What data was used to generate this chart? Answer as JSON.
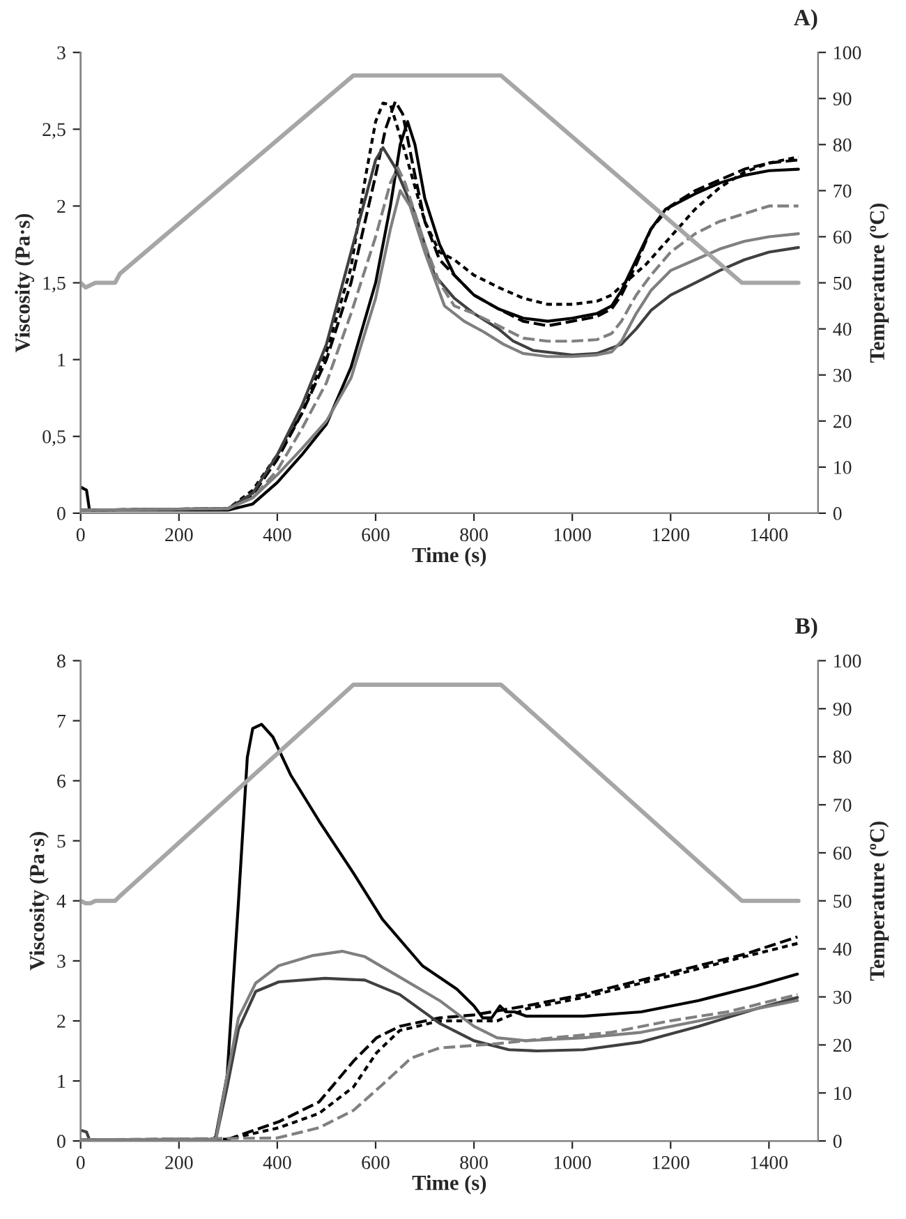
{
  "chart_data": [
    {
      "type": "line",
      "title": "A)",
      "xlabel": "Time (s)",
      "ylabel": "Viscosity (Pa·s)",
      "y2label": "Temperature (ºC)",
      "xlim": [
        0,
        1500
      ],
      "xticks": [
        0,
        200,
        400,
        600,
        800,
        1000,
        1200,
        1400
      ],
      "ylim": [
        0,
        3
      ],
      "yticks": [
        0,
        {
          "value": 0.5,
          "label": "0,5"
        },
        1,
        {
          "value": 1.5,
          "label": "1,5"
        },
        2,
        {
          "value": 2.5,
          "label": "2,5"
        },
        3
      ],
      "y2lim": [
        0,
        100
      ],
      "y2ticks": [
        0,
        10,
        20,
        30,
        40,
        50,
        60,
        70,
        80,
        90,
        100
      ],
      "grid": false,
      "legend": false,
      "marker": "none",
      "series": [
        {
          "color": "#000000",
          "line_style": "solid",
          "x": [
            0,
            12,
            18,
            300,
            350,
            400,
            450,
            500,
            550,
            600,
            630,
            650,
            665,
            680,
            700,
            730,
            760,
            800,
            850,
            900,
            950,
            1000,
            1050,
            1080,
            1100,
            1130,
            1160,
            1190,
            1250,
            1300,
            1350,
            1400,
            1460
          ],
          "values": [
            0.17,
            0.15,
            0.02,
            0.02,
            0.06,
            0.2,
            0.38,
            0.58,
            0.95,
            1.5,
            2.0,
            2.4,
            2.55,
            2.4,
            2.05,
            1.75,
            1.55,
            1.42,
            1.33,
            1.27,
            1.25,
            1.27,
            1.3,
            1.35,
            1.45,
            1.65,
            1.85,
            1.98,
            2.08,
            2.15,
            2.2,
            2.23,
            2.24
          ]
        },
        {
          "color": "#000000",
          "line_style": "dashed",
          "x": [
            0,
            300,
            350,
            400,
            450,
            500,
            550,
            600,
            620,
            640,
            655,
            680,
            700,
            730,
            760,
            800,
            850,
            900,
            950,
            1000,
            1050,
            1080,
            1100,
            1130,
            1160,
            1200,
            1250,
            1300,
            1350,
            1400,
            1460
          ],
          "values": [
            0.02,
            0.03,
            0.12,
            0.35,
            0.65,
            1.0,
            1.5,
            2.2,
            2.5,
            2.68,
            2.6,
            2.2,
            1.9,
            1.65,
            1.55,
            1.42,
            1.33,
            1.25,
            1.22,
            1.25,
            1.28,
            1.33,
            1.42,
            1.62,
            1.85,
            2.0,
            2.1,
            2.17,
            2.24,
            2.28,
            2.3
          ]
        },
        {
          "color": "#000000",
          "line_style": "dotted",
          "x": [
            0,
            300,
            350,
            400,
            450,
            500,
            550,
            580,
            600,
            615,
            630,
            660,
            700,
            730,
            760,
            800,
            850,
            900,
            950,
            1000,
            1050,
            1080,
            1100,
            1150,
            1200,
            1250,
            1300,
            1350,
            1400,
            1460
          ],
          "values": [
            0.02,
            0.03,
            0.15,
            0.38,
            0.65,
            1.05,
            1.6,
            2.2,
            2.55,
            2.67,
            2.66,
            2.35,
            1.9,
            1.7,
            1.65,
            1.55,
            1.47,
            1.4,
            1.36,
            1.36,
            1.38,
            1.42,
            1.48,
            1.62,
            1.8,
            1.98,
            2.12,
            2.22,
            2.28,
            2.32
          ]
        },
        {
          "color": "#404040",
          "line_style": "solid",
          "x": [
            0,
            300,
            350,
            400,
            450,
            500,
            550,
            600,
            615,
            640,
            680,
            720,
            760,
            800,
            850,
            880,
            920,
            1000,
            1050,
            1100,
            1130,
            1160,
            1200,
            1250,
            1300,
            1350,
            1400,
            1460
          ],
          "values": [
            0.02,
            0.03,
            0.13,
            0.38,
            0.7,
            1.1,
            1.7,
            2.3,
            2.38,
            2.25,
            1.95,
            1.55,
            1.4,
            1.3,
            1.2,
            1.12,
            1.06,
            1.03,
            1.04,
            1.1,
            1.2,
            1.32,
            1.42,
            1.5,
            1.58,
            1.65,
            1.7,
            1.73
          ]
        },
        {
          "color": "#808080",
          "line_style": "dashed",
          "x": [
            0,
            300,
            350,
            400,
            450,
            500,
            550,
            600,
            630,
            645,
            660,
            700,
            730,
            760,
            800,
            850,
            900,
            950,
            1000,
            1050,
            1080,
            1100,
            1130,
            1160,
            1200,
            1250,
            1300,
            1350,
            1400,
            1460
          ],
          "values": [
            0.02,
            0.03,
            0.1,
            0.28,
            0.55,
            0.85,
            1.3,
            1.8,
            2.15,
            2.25,
            2.15,
            1.75,
            1.5,
            1.35,
            1.3,
            1.22,
            1.14,
            1.12,
            1.12,
            1.13,
            1.17,
            1.25,
            1.42,
            1.55,
            1.7,
            1.82,
            1.9,
            1.95,
            2.0,
            2.0
          ]
        },
        {
          "color": "#7f7f7f",
          "line_style": "solid",
          "x": [
            0,
            300,
            350,
            400,
            450,
            500,
            550,
            600,
            630,
            650,
            670,
            700,
            740,
            780,
            820,
            860,
            900,
            950,
            1000,
            1050,
            1080,
            1100,
            1130,
            1160,
            1200,
            1250,
            1300,
            1350,
            1400,
            1460
          ],
          "values": [
            0.02,
            0.03,
            0.1,
            0.25,
            0.42,
            0.6,
            0.88,
            1.4,
            1.85,
            2.1,
            2.0,
            1.7,
            1.35,
            1.25,
            1.18,
            1.1,
            1.04,
            1.02,
            1.02,
            1.03,
            1.05,
            1.12,
            1.3,
            1.45,
            1.58,
            1.65,
            1.72,
            1.77,
            1.8,
            1.82
          ]
        },
        {
          "color": "#a6a6a6",
          "line_style": "solid",
          "axis": "y2",
          "x": [
            0,
            10,
            30,
            70,
            80,
            555,
            855,
            1345,
            1460
          ],
          "values": [
            50,
            49,
            50,
            50,
            52,
            95,
            95,
            50,
            50
          ]
        }
      ]
    },
    {
      "type": "line",
      "title": "B)",
      "xlabel": "Time (s)",
      "ylabel": "Viscosity (Pa·s)",
      "y2label": "Temperature (ºC)",
      "xlim": [
        0,
        1500
      ],
      "xticks": [
        0,
        200,
        400,
        600,
        800,
        1000,
        1200,
        1400
      ],
      "ylim": [
        0,
        8
      ],
      "yticks": [
        0,
        1,
        2,
        3,
        4,
        5,
        6,
        7,
        8
      ],
      "y2lim": [
        0,
        100
      ],
      "y2ticks": [
        0,
        10,
        20,
        30,
        40,
        50,
        60,
        70,
        80,
        90,
        100
      ],
      "grid": false,
      "legend": false,
      "marker": "none",
      "series": [
        {
          "color": "#000000",
          "line_style": "solid",
          "x": [
            0,
            270,
            275,
            298,
            321,
            339,
            350,
            368,
            391,
            427,
            485,
            555,
            614,
            695,
            765,
            800,
            818,
            836,
            853,
            865,
            883,
            906,
            1023,
            1140,
            1257,
            1373,
            1458
          ],
          "values": [
            0.02,
            0.02,
            0.08,
            1.09,
            3.98,
            6.39,
            6.87,
            6.94,
            6.73,
            6.1,
            5.33,
            4.46,
            3.69,
            2.92,
            2.53,
            2.25,
            2.05,
            2.05,
            2.25,
            2.15,
            2.15,
            2.08,
            2.08,
            2.15,
            2.34,
            2.58,
            2.78
          ]
        },
        {
          "color": "#000000",
          "line_style": "dashed",
          "x": [
            0,
            300,
            403,
            485,
            555,
            602,
            649,
            730,
            800,
            906,
            1023,
            1140,
            1257,
            1350,
            1458
          ],
          "values": [
            0.02,
            0.03,
            0.32,
            0.65,
            1.33,
            1.72,
            1.91,
            2.05,
            2.1,
            2.25,
            2.44,
            2.68,
            2.92,
            3.11,
            3.4
          ]
        },
        {
          "color": "#000000",
          "line_style": "dotted",
          "x": [
            0,
            300,
            403,
            485,
            555,
            602,
            649,
            730,
            847,
            906,
            1023,
            1140,
            1257,
            1350,
            1458
          ],
          "values": [
            0.02,
            0.03,
            0.22,
            0.46,
            0.9,
            1.47,
            1.84,
            2.0,
            2.0,
            2.2,
            2.39,
            2.63,
            2.87,
            3.07,
            3.29
          ]
        },
        {
          "color": "#404040",
          "line_style": "solid",
          "x": [
            0,
            12,
            18,
            275,
            298,
            321,
            356,
            403,
            497,
            578,
            649,
            730,
            800,
            871,
            929,
            1023,
            1140,
            1257,
            1373,
            1458
          ],
          "values": [
            0.18,
            0.15,
            0.02,
            0.03,
            0.9,
            1.86,
            2.49,
            2.65,
            2.71,
            2.68,
            2.44,
            1.96,
            1.67,
            1.52,
            1.5,
            1.52,
            1.65,
            1.91,
            2.2,
            2.39
          ]
        },
        {
          "color": "#808080",
          "line_style": "dashed",
          "x": [
            0,
            400,
            485,
            555,
            614,
            672,
            730,
            847,
            963,
            1080,
            1198,
            1315,
            1458
          ],
          "values": [
            0.02,
            0.05,
            0.22,
            0.51,
            0.94,
            1.38,
            1.55,
            1.62,
            1.72,
            1.81,
            2.0,
            2.15,
            2.44
          ]
        },
        {
          "color": "#7f7f7f",
          "line_style": "solid",
          "x": [
            0,
            275,
            298,
            321,
            356,
            403,
            473,
            532,
            578,
            649,
            730,
            800,
            847,
            906,
            1023,
            1140,
            1257,
            1373,
            1458
          ],
          "values": [
            0.02,
            0.03,
            1.09,
            2.05,
            2.63,
            2.92,
            3.09,
            3.16,
            3.07,
            2.73,
            2.34,
            1.91,
            1.72,
            1.67,
            1.72,
            1.81,
            2.0,
            2.2,
            2.34
          ]
        },
        {
          "color": "#a6a6a6",
          "line_style": "solid",
          "axis": "y2",
          "x": [
            0,
            10,
            20,
            30,
            70,
            80,
            555,
            855,
            1345,
            1460
          ],
          "values": [
            50,
            49.5,
            49.5,
            50,
            50,
            51,
            95,
            95,
            50,
            50
          ]
        }
      ]
    }
  ]
}
